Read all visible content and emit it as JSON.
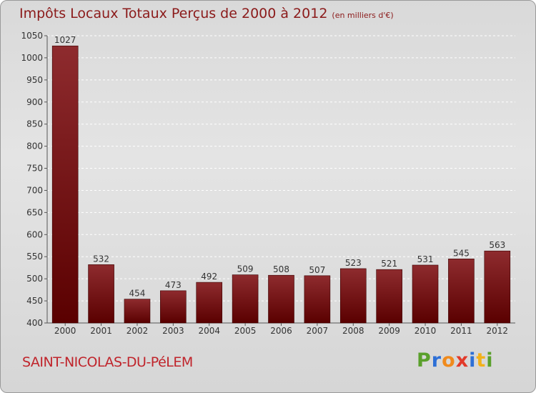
{
  "header": {
    "title": "Impôts Locaux Totaux Perçus de 2000 à 2012",
    "unit": "(en milliers d'€)"
  },
  "footer": {
    "city": "SAINT-NICOLAS-DU-PéLEM",
    "logo": {
      "letters": [
        "P",
        "r",
        "o",
        "x",
        "i",
        "t",
        "i"
      ]
    }
  },
  "colors": {
    "bar_top": "#8e2b2e",
    "bar_bottom": "#5a0000",
    "title": "#8b1a1a",
    "city": "#c0242b",
    "logo_letters": [
      "#5aa02c",
      "#2d6fd6",
      "#f08a1c",
      "#e23a2a",
      "#2d6fd6",
      "#f2b11b",
      "#5aa02c"
    ]
  },
  "chart_data": {
    "type": "bar",
    "title": "Impôts Locaux Totaux Perçus de 2000 à 2012",
    "xlabel": "",
    "ylabel": "",
    "categories": [
      "2000",
      "2001",
      "2002",
      "2003",
      "2004",
      "2005",
      "2006",
      "2007",
      "2008",
      "2009",
      "2010",
      "2011",
      "2012"
    ],
    "values": [
      1027,
      532,
      454,
      473,
      492,
      509,
      508,
      507,
      523,
      521,
      531,
      545,
      563
    ],
    "ylim": [
      400,
      1050
    ],
    "yticks": [
      400,
      450,
      500,
      550,
      600,
      650,
      700,
      750,
      800,
      850,
      900,
      950,
      1000,
      1050
    ],
    "grid": true
  }
}
